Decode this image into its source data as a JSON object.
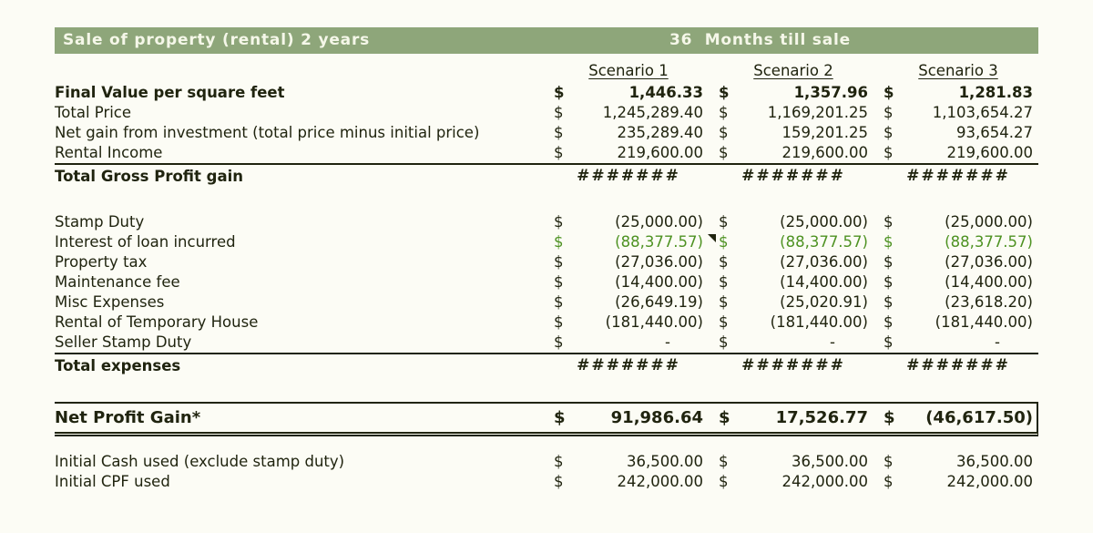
{
  "title_bar": {
    "left": "Sale of property (rental) 2 years",
    "right": "36  Months till sale"
  },
  "columns": [
    "Scenario 1",
    "Scenario 2",
    "Scenario 3"
  ],
  "currency": "$",
  "overflow_marker": "#######",
  "colors": {
    "header_bg": "#8ea67a",
    "header_text": "#f5f7e9",
    "text": "#20240f",
    "green_value": "#4e9222",
    "border": "#20240f"
  },
  "rows": [
    {
      "label": "Final Value per square feet",
      "bold": true,
      "values": [
        "1,446.33",
        "1,357.96",
        "1,281.83"
      ]
    },
    {
      "label": "Total Price",
      "values": [
        "1,245,289.40",
        "1,169,201.25",
        "1,103,654.27"
      ]
    },
    {
      "label": "Net gain from investment (total price minus initial price)",
      "values": [
        "235,289.40",
        "159,201.25",
        "93,654.27"
      ]
    },
    {
      "label": "Rental Income",
      "values": [
        "219,600.00",
        "219,600.00",
        "219,600.00"
      ]
    },
    {
      "label": "Total Gross Profit gain",
      "bold": true,
      "hash": true,
      "border_top": true
    },
    {
      "spacer": true
    },
    {
      "label": "Stamp Duty",
      "values": [
        "(25,000.00)",
        "(25,000.00)",
        "(25,000.00)"
      ]
    },
    {
      "label": "Interest of loan incurred",
      "green": true,
      "comment_on": 0,
      "values": [
        "(88,377.57)",
        "(88,377.57)",
        "(88,377.57)"
      ]
    },
    {
      "label": "Property tax",
      "values": [
        "(27,036.00)",
        "(27,036.00)",
        "(27,036.00)"
      ]
    },
    {
      "label": "Maintenance fee",
      "values": [
        "(14,400.00)",
        "(14,400.00)",
        "(14,400.00)"
      ]
    },
    {
      "label": "Misc Expenses",
      "values": [
        "(26,649.19)",
        "(25,020.91)",
        "(23,618.20)"
      ]
    },
    {
      "label": "Rental of Temporary House",
      "values": [
        "(181,440.00)",
        "(181,440.00)",
        "(181,440.00)"
      ]
    },
    {
      "label": "Seller Stamp Duty",
      "dash": true,
      "values": [
        "-",
        "-",
        "-"
      ]
    },
    {
      "label": "Total expenses",
      "bold": true,
      "hash": true,
      "border_top": true
    },
    {
      "spacer": true
    },
    {
      "label": "Net Profit Gain*",
      "bold": true,
      "netbox": true,
      "values": [
        "91,986.64",
        "17,526.77",
        "(46,617.50)"
      ]
    },
    {
      "spacer": true,
      "small": true
    },
    {
      "label": "Initial Cash used (exclude stamp duty)",
      "values": [
        "36,500.00",
        "36,500.00",
        "36,500.00"
      ]
    },
    {
      "label": "Initial CPF used",
      "values": [
        "242,000.00",
        "242,000.00",
        "242,000.00"
      ]
    }
  ]
}
